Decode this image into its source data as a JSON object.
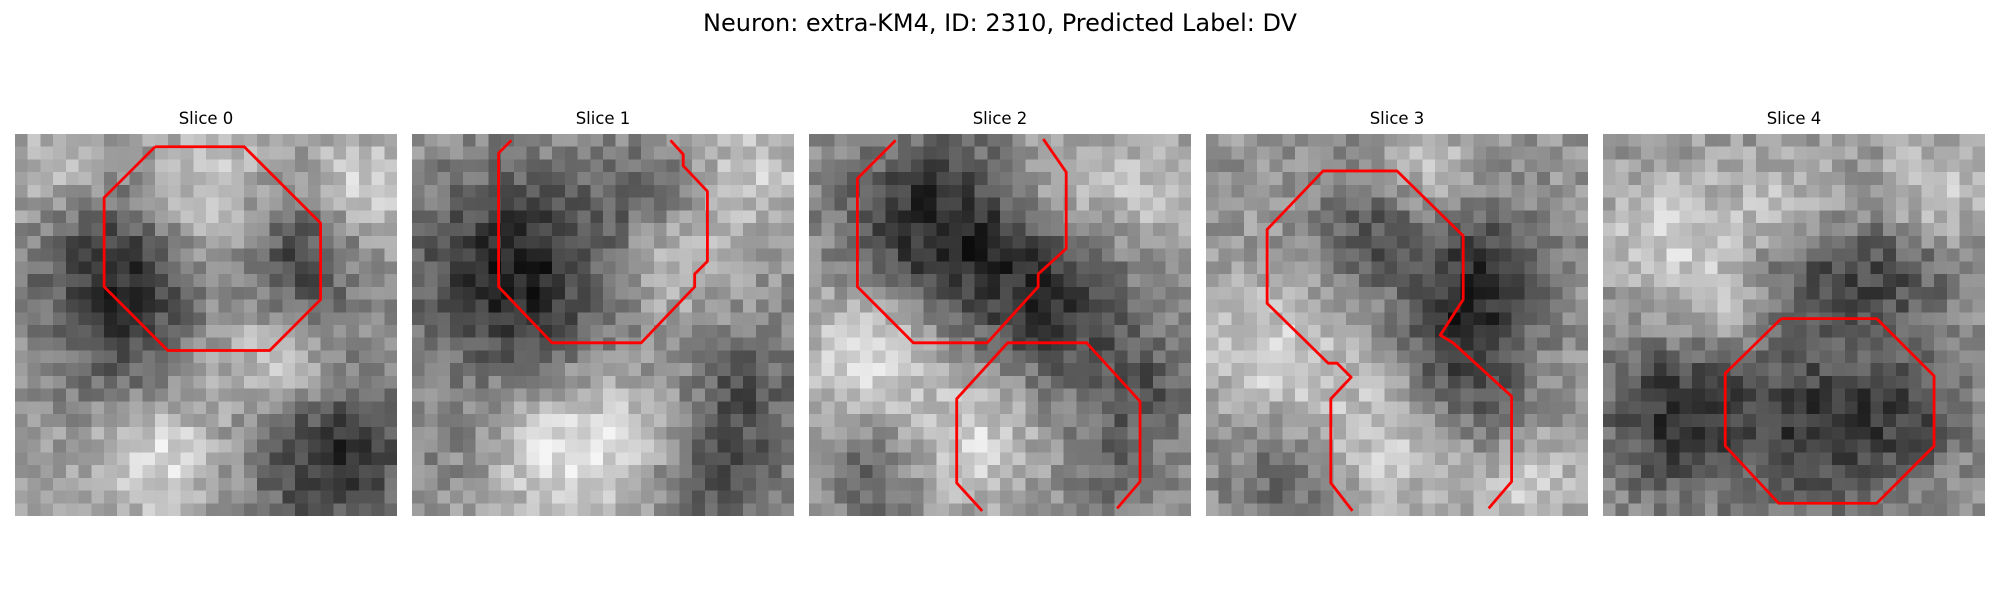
{
  "figure": {
    "title": "Neuron: extra-KM4, ID: 2310, Predicted Label: DV"
  },
  "outline_color": "#ff0000",
  "slices": [
    {
      "title": "Slice 0"
    },
    {
      "title": "Slice 1"
    },
    {
      "title": "Slice 2"
    },
    {
      "title": "Slice 3"
    },
    {
      "title": "Slice 4"
    }
  ]
}
